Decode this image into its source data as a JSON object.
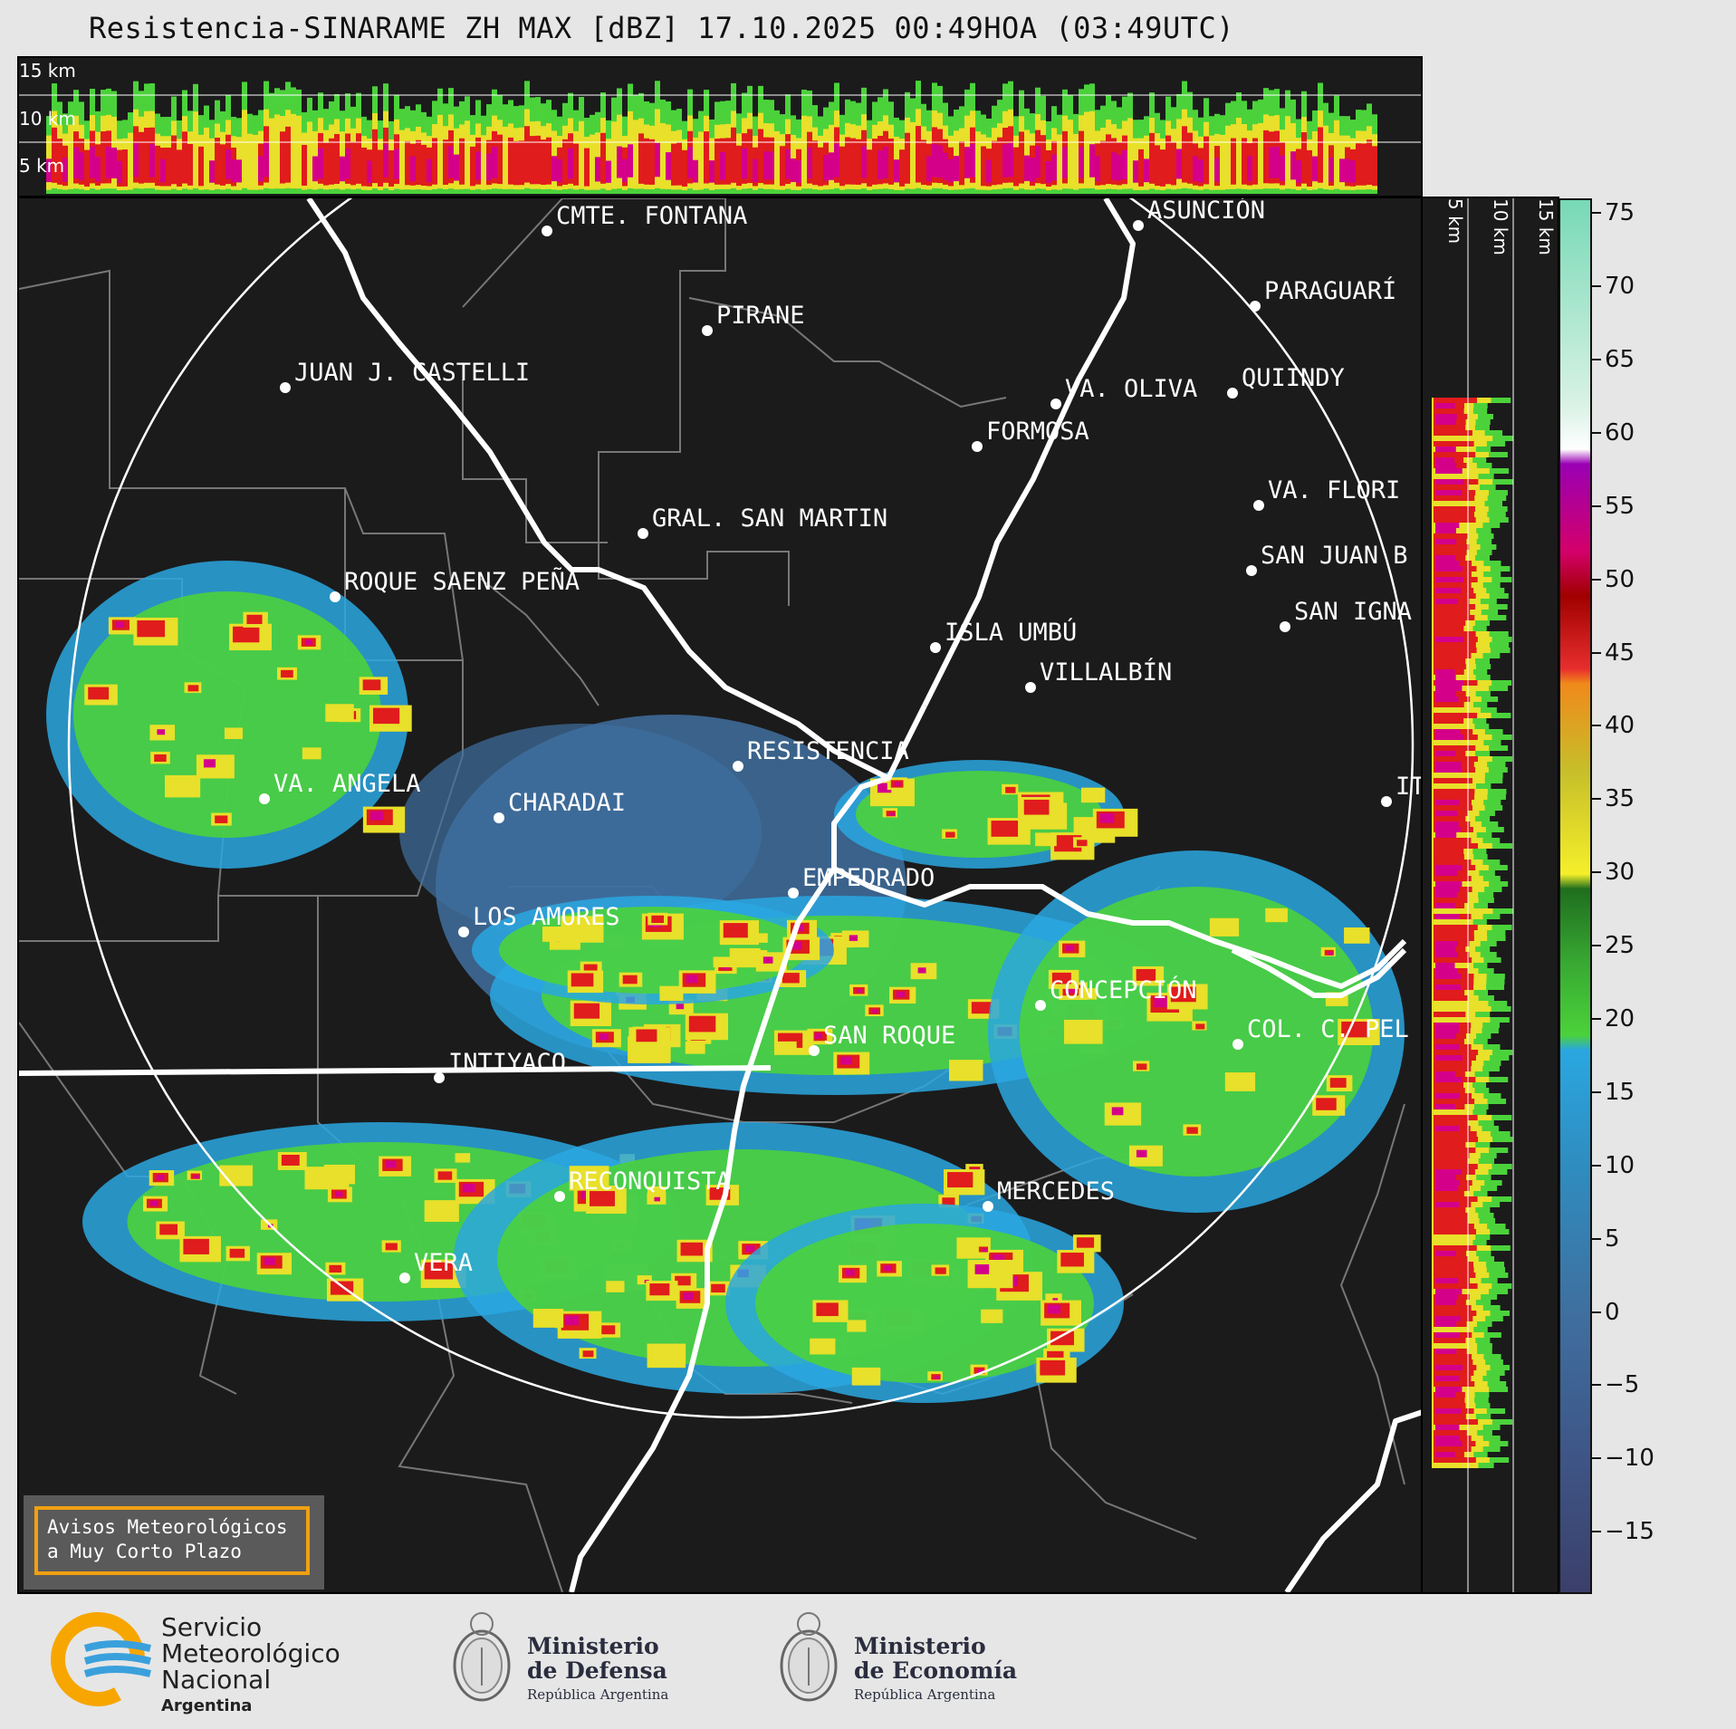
{
  "title": "Resistencia-SINARAME ZH MAX [dBZ] 17.10.2025 00:49HOA (03:49UTC)",
  "top_profile": {
    "heights": [
      "15 km",
      "10 km",
      "5 km"
    ]
  },
  "side_profile": {
    "heights": [
      "5 km",
      "10 km",
      "15 km"
    ]
  },
  "colorbar": {
    "unit": "dBZ",
    "ticks": [
      "75",
      "70",
      "65",
      "60",
      "55",
      "50",
      "45",
      "40",
      "35",
      "30",
      "25",
      "20",
      "15",
      "10",
      "5",
      "0",
      "−5",
      "−10",
      "−15"
    ],
    "range": [
      -19,
      76
    ],
    "stops": [
      {
        "v": -19,
        "c": "#3b3f6a"
      },
      {
        "v": -10,
        "c": "#3e5586"
      },
      {
        "v": 0,
        "c": "#3f6f9f"
      },
      {
        "v": 10,
        "c": "#2f8cbf"
      },
      {
        "v": 18,
        "c": "#2aa7e0"
      },
      {
        "v": 19,
        "c": "#4bd23b"
      },
      {
        "v": 24,
        "c": "#38a832"
      },
      {
        "v": 29,
        "c": "#1f6e1e"
      },
      {
        "v": 30,
        "c": "#f5ef2a"
      },
      {
        "v": 37,
        "c": "#c6bf2a"
      },
      {
        "v": 43,
        "c": "#f08a1a"
      },
      {
        "v": 44,
        "c": "#e82e2e"
      },
      {
        "v": 49,
        "c": "#a00000"
      },
      {
        "v": 52,
        "c": "#d4006a"
      },
      {
        "v": 58,
        "c": "#9a00b4"
      },
      {
        "v": 59,
        "c": "#ffffff"
      },
      {
        "v": 62,
        "c": "#d9f2e6"
      },
      {
        "v": 76,
        "c": "#77d9b6"
      }
    ]
  },
  "map": {
    "cities": [
      {
        "name": "CMTE. FONTANA"
      },
      {
        "name": "ASUNCIÓN"
      },
      {
        "name": "PIRANE"
      },
      {
        "name": "PARAGUARÍ"
      },
      {
        "name": "JUAN J. CASTELLI"
      },
      {
        "name": "VA. OLIVA"
      },
      {
        "name": "QUIINDY"
      },
      {
        "name": "FORMOSA"
      },
      {
        "name": "VA. FLORI"
      },
      {
        "name": "GRAL. SAN MARTIN"
      },
      {
        "name": "SAN JUAN B"
      },
      {
        "name": "ROQUE SAENZ PEÑA"
      },
      {
        "name": "SAN IGNA"
      },
      {
        "name": "ISLA UMBÚ"
      },
      {
        "name": "VILLALBÍN"
      },
      {
        "name": "RESISTENCIA"
      },
      {
        "name": "VA. ANGELA"
      },
      {
        "name": "CHARADAI"
      },
      {
        "name": "IT"
      },
      {
        "name": "EMPEDRADO"
      },
      {
        "name": "LOS AMORES"
      },
      {
        "name": "CONCEPCIÓN"
      },
      {
        "name": "COL. C. PEL"
      },
      {
        "name": "SAN ROQUE"
      },
      {
        "name": "INTIYACO"
      },
      {
        "name": "RECONQUISTA"
      },
      {
        "name": "MERCEDES"
      },
      {
        "name": "VERA"
      }
    ]
  },
  "avisos": {
    "line1": "Avisos Meteorológicos",
    "line2": "a Muy Corto Plazo"
  },
  "footer": {
    "smn": {
      "line1": "Servicio",
      "line2": "Meteorológico",
      "line3": "Nacional",
      "line4": "Argentina"
    },
    "defensa": {
      "line1": "Ministerio",
      "line2": "de Defensa",
      "line3": "República Argentina"
    },
    "economia": {
      "line1": "Ministerio",
      "line2": "de Economía",
      "line3": "República Argentina"
    }
  }
}
